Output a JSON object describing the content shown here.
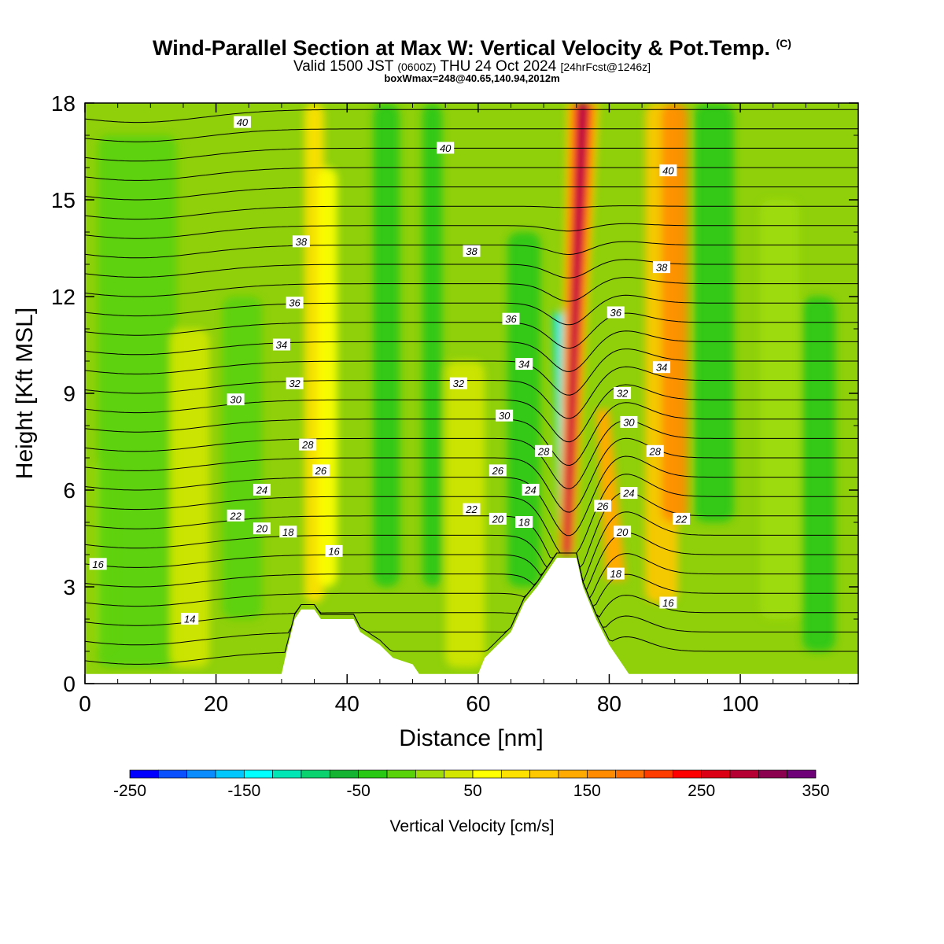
{
  "header": {
    "title": "Wind-Parallel Section at Max W: Vertical Velocity & Pot.Temp.",
    "copyright": "(C)",
    "valid_a": "Valid 1500 JST",
    "valid_b": "(0600Z)",
    "valid_c": "THU 24 Oct 2024",
    "valid_d": "[24hrFcst@1246z]",
    "boxinfo": "boxWmax=248@40.65,140.94,2012m"
  },
  "chart_data": {
    "type": "heatmap",
    "xlabel": "Distance [nm]",
    "ylabel": "Height [Kft MSL]",
    "xlim": [
      0,
      118
    ],
    "ylim": [
      0,
      18
    ],
    "xticks": [
      0,
      20,
      40,
      60,
      80,
      100
    ],
    "yticks": [
      0,
      3,
      6,
      9,
      12,
      15,
      18
    ],
    "colorbar": {
      "label": "Vertical Velocity [cm/s]",
      "min": -250,
      "max": 350,
      "step": 25,
      "tick_labels": [
        "-250",
        "-150",
        "-50",
        "50",
        "150",
        "250",
        "350"
      ],
      "colors": [
        "#0000ff",
        "#0a50ff",
        "#0a8cff",
        "#00c8ff",
        "#00ffff",
        "#00e6b4",
        "#0ad26e",
        "#14b432",
        "#28c814",
        "#5ad20a",
        "#a0dc0a",
        "#d2e600",
        "#ffff00",
        "#ffe100",
        "#ffc800",
        "#ffaa00",
        "#ff8c00",
        "#ff6e00",
        "#ff3c00",
        "#ff0000",
        "#dc0014",
        "#b40032",
        "#8c0050",
        "#6e0078"
      ]
    },
    "terrain": [
      [
        0,
        0.3
      ],
      [
        30,
        0.3
      ],
      [
        31,
        1.2
      ],
      [
        32,
        2.0
      ],
      [
        33,
        2.3
      ],
      [
        35,
        2.3
      ],
      [
        36,
        2.0
      ],
      [
        41,
        2.0
      ],
      [
        42,
        1.6
      ],
      [
        45,
        1.2
      ],
      [
        47,
        0.8
      ],
      [
        50,
        0.6
      ],
      [
        51,
        0.3
      ],
      [
        60,
        0.3
      ],
      [
        61,
        0.8
      ],
      [
        63,
        1.2
      ],
      [
        65,
        1.6
      ],
      [
        67,
        2.5
      ],
      [
        69,
        3.0
      ],
      [
        71,
        3.6
      ],
      [
        72,
        3.9
      ],
      [
        75,
        3.9
      ],
      [
        76,
        3.0
      ],
      [
        78,
        2.0
      ],
      [
        80,
        1.2
      ],
      [
        82,
        0.6
      ],
      [
        83,
        0.3
      ],
      [
        118,
        0.3
      ]
    ],
    "vv_features": [
      {
        "x": 3,
        "width": 3,
        "bottom": 1.0,
        "top": 7.0,
        "w": 0
      },
      {
        "x": 8,
        "width": 12,
        "bottom": 0.5,
        "top": 17.0,
        "w": -20
      },
      {
        "x": 16,
        "width": 6,
        "bottom": 0.5,
        "top": 11.0,
        "w": 40
      },
      {
        "x": 24,
        "width": 6,
        "bottom": 2.0,
        "top": 12.0,
        "w": -20
      },
      {
        "x": 35,
        "width": 3,
        "bottom": 2.5,
        "top": 18.0,
        "w": 80
      },
      {
        "x": 37,
        "width": 3,
        "bottom": 3.0,
        "top": 16.0,
        "w": 70
      },
      {
        "x": 46,
        "width": 4,
        "bottom": 3.0,
        "top": 18.0,
        "w": -30
      },
      {
        "x": 53,
        "width": 3,
        "bottom": 3.0,
        "top": 18.0,
        "w": -40
      },
      {
        "x": 58,
        "width": 6,
        "bottom": 0.5,
        "top": 10.0,
        "w": 45
      },
      {
        "x": 67,
        "width": 5,
        "bottom": 3.0,
        "top": 14.0,
        "w": -35
      },
      {
        "x": 88,
        "width": 5,
        "bottom": 2.5,
        "top": 18.0,
        "w": 110
      },
      {
        "x": 90,
        "width": 4,
        "bottom": 5.0,
        "top": 18.0,
        "w": 160
      },
      {
        "x": 96,
        "width": 6,
        "bottom": 5.0,
        "top": 18.0,
        "w": -50
      },
      {
        "x": 106,
        "width": 6,
        "bottom": 2.0,
        "top": 15.0,
        "w": 20
      },
      {
        "x": 112,
        "width": 5,
        "bottom": 1.0,
        "top": 12.0,
        "w": -40
      }
    ],
    "plume": {
      "x_top": 76,
      "x_bottom": 73.5,
      "bottom": 4.0,
      "top": 18.0,
      "w": 300
    },
    "downdraft": {
      "x": 73,
      "bottom": 4.5,
      "top": 11.5,
      "w": -150
    },
    "lee_wave": {
      "x": 81,
      "bottom": 3.2,
      "top": 8.5,
      "w": 130
    },
    "theta_labels": [
      {
        "text": "40",
        "x": 24,
        "y": 17.4
      },
      {
        "text": "40",
        "x": 55,
        "y": 16.6
      },
      {
        "text": "40",
        "x": 89,
        "y": 15.9
      },
      {
        "text": "38",
        "x": 33,
        "y": 13.7
      },
      {
        "text": "38",
        "x": 59,
        "y": 13.4
      },
      {
        "text": "38",
        "x": 88,
        "y": 12.9
      },
      {
        "text": "36",
        "x": 32,
        "y": 11.8
      },
      {
        "text": "36",
        "x": 65,
        "y": 11.3
      },
      {
        "text": "36",
        "x": 81,
        "y": 11.5
      },
      {
        "text": "34",
        "x": 30,
        "y": 10.5
      },
      {
        "text": "34",
        "x": 67,
        "y": 9.9
      },
      {
        "text": "34",
        "x": 88,
        "y": 9.8
      },
      {
        "text": "32",
        "x": 32,
        "y": 9.3
      },
      {
        "text": "32",
        "x": 57,
        "y": 9.3
      },
      {
        "text": "32",
        "x": 82,
        "y": 9.0
      },
      {
        "text": "30",
        "x": 23,
        "y": 8.8
      },
      {
        "text": "30",
        "x": 64,
        "y": 8.3
      },
      {
        "text": "30",
        "x": 83,
        "y": 8.1
      },
      {
        "text": "28",
        "x": 34,
        "y": 7.4
      },
      {
        "text": "28",
        "x": 70,
        "y": 7.2
      },
      {
        "text": "28",
        "x": 87,
        "y": 7.2
      },
      {
        "text": "26",
        "x": 36,
        "y": 6.6
      },
      {
        "text": "26",
        "x": 63,
        "y": 6.6
      },
      {
        "text": "26",
        "x": 79,
        "y": 5.5
      },
      {
        "text": "24",
        "x": 27,
        "y": 6.0
      },
      {
        "text": "24",
        "x": 68,
        "y": 6.0
      },
      {
        "text": "24",
        "x": 83,
        "y": 5.9
      },
      {
        "text": "22",
        "x": 23,
        "y": 5.2
      },
      {
        "text": "22",
        "x": 59,
        "y": 5.4
      },
      {
        "text": "22",
        "x": 91,
        "y": 5.1
      },
      {
        "text": "20",
        "x": 27,
        "y": 4.8
      },
      {
        "text": "20",
        "x": 63,
        "y": 5.1
      },
      {
        "text": "20",
        "x": 82,
        "y": 4.7
      },
      {
        "text": "18",
        "x": 31,
        "y": 4.7
      },
      {
        "text": "18",
        "x": 67,
        "y": 5.0
      },
      {
        "text": "18",
        "x": 81,
        "y": 3.4
      },
      {
        "text": "16",
        "x": 2,
        "y": 3.7
      },
      {
        "text": "16",
        "x": 38,
        "y": 4.1
      },
      {
        "text": "16",
        "x": 89,
        "y": 2.5
      },
      {
        "text": "14",
        "x": 16,
        "y": 2.0
      }
    ]
  }
}
